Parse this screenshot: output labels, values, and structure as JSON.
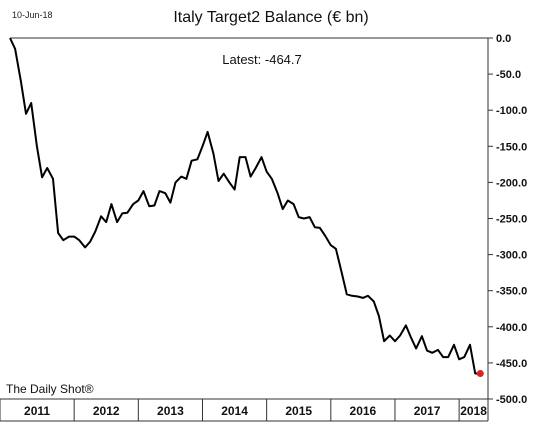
{
  "header": {
    "date": "10-Jun-18",
    "credit": "The Daily Shot®"
  },
  "chart_data": {
    "type": "line",
    "title": "Italy Target2 Balance (€ bn)",
    "annotation": "Latest:  -464.7",
    "latest_value": -464.7,
    "ylim": [
      -500,
      0
    ],
    "yticks": [
      0,
      -50,
      -100,
      -150,
      -200,
      -250,
      -300,
      -350,
      -400,
      -450,
      -500
    ],
    "ytick_labels": [
      "0.0",
      "-50.0",
      "-100.0",
      "-150.0",
      "-200.0",
      "-250.0",
      "-300.0",
      "-350.0",
      "-400.0",
      "-450.0",
      "-500.0"
    ],
    "xlim": [
      2011.0,
      2018.45
    ],
    "year_labels": [
      "2011",
      "2012",
      "2013",
      "2014",
      "2015",
      "2016",
      "2017",
      "2018"
    ],
    "year_starts": [
      2011,
      2012,
      2013,
      2014,
      2015,
      2016,
      2017,
      2018
    ],
    "grid": false,
    "legend": "none",
    "highlight_color": "#e02020",
    "line_color": "#000000",
    "series": [
      {
        "x": [
          2011.0,
          2011.08,
          2011.17,
          2011.25,
          2011.33,
          2011.42,
          2011.5,
          2011.58,
          2011.67,
          2011.75,
          2011.83,
          2011.92,
          2012.0,
          2012.08,
          2012.17,
          2012.25,
          2012.33,
          2012.42,
          2012.5,
          2012.58,
          2012.67,
          2012.75,
          2012.83,
          2012.92,
          2013.0,
          2013.08,
          2013.17,
          2013.25,
          2013.33,
          2013.42,
          2013.5,
          2013.58,
          2013.67,
          2013.75,
          2013.83,
          2013.92,
          2014.0,
          2014.08,
          2014.17,
          2014.25,
          2014.33,
          2014.42,
          2014.5,
          2014.58,
          2014.67,
          2014.75,
          2014.83,
          2014.92,
          2015.0,
          2015.08,
          2015.17,
          2015.25,
          2015.33,
          2015.42,
          2015.5,
          2015.58,
          2015.67,
          2015.75,
          2015.83,
          2015.92,
          2016.0,
          2016.08,
          2016.17,
          2016.25,
          2016.33,
          2016.42,
          2016.5,
          2016.58,
          2016.67,
          2016.75,
          2016.83,
          2016.92,
          2017.0,
          2017.08,
          2017.17,
          2017.25,
          2017.33,
          2017.42,
          2017.5,
          2017.58,
          2017.67,
          2017.75,
          2017.83,
          2017.92,
          2018.0,
          2018.08,
          2018.17,
          2018.25,
          2018.33
        ],
        "y": [
          0,
          -15,
          -60,
          -105,
          -90,
          -150,
          -193,
          -180,
          -195,
          -270,
          -280,
          -275,
          -275,
          -280,
          -290,
          -282,
          -268,
          -247,
          -255,
          -230,
          -255,
          -243,
          -242,
          -230,
          -225,
          -212,
          -233,
          -232,
          -212,
          -215,
          -228,
          -200,
          -192,
          -195,
          -170,
          -168,
          -150,
          -130,
          -160,
          -198,
          -188,
          -200,
          -210,
          -165,
          -165,
          -192,
          -180,
          -165,
          -185,
          -195,
          -215,
          -237,
          -225,
          -230,
          -248,
          -250,
          -248,
          -262,
          -263,
          -275,
          -287,
          -292,
          -325,
          -355,
          -357,
          -358,
          -360,
          -357,
          -365,
          -385,
          -420,
          -412,
          -420,
          -412,
          -398,
          -415,
          -430,
          -413,
          -433,
          -436,
          -432,
          -442,
          -442,
          -425,
          -445,
          -442,
          -425,
          -464.7,
          -464.7
        ]
      }
    ]
  }
}
